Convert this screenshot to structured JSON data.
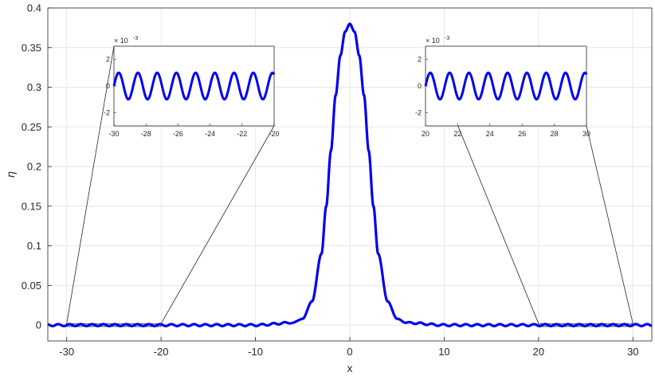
{
  "chart_data": {
    "type": "line",
    "title": "",
    "xlabel": "x",
    "ylabel": "η",
    "xlim": [
      -32,
      32
    ],
    "ylim": [
      -0.02,
      0.4
    ],
    "grid": true,
    "line_color": "#0000ee",
    "x_ticks": [
      -30,
      -20,
      -10,
      0,
      10,
      20,
      30
    ],
    "x_tick_labels": [
      "-30",
      "-20",
      "-10",
      "0",
      "10",
      "20",
      "30"
    ],
    "y_ticks": [
      0,
      0.05,
      0.1,
      0.15,
      0.2,
      0.25,
      0.3,
      0.35,
      0.4
    ],
    "y_tick_labels": [
      "0",
      "0.05",
      "0.1",
      "0.15",
      "0.2",
      "0.25",
      "0.3",
      "0.35",
      "0.4"
    ],
    "series": [
      {
        "x": [
          -32,
          -30,
          -25,
          -20,
          -15,
          -10,
          -6,
          -5,
          -4,
          -3,
          -2.5,
          -2,
          -1.5,
          -1,
          -0.5,
          0,
          0.5,
          1,
          1.5,
          2,
          2.5,
          3,
          4,
          5,
          6,
          10,
          15,
          20,
          25,
          30,
          32
        ],
        "y": [
          0,
          0,
          0,
          0,
          0,
          0,
          0.003,
          0.008,
          0.03,
          0.09,
          0.15,
          0.22,
          0.29,
          0.34,
          0.37,
          0.38,
          0.37,
          0.34,
          0.29,
          0.22,
          0.15,
          0.09,
          0.03,
          0.008,
          0.003,
          0,
          0,
          0,
          0,
          0,
          0
        ],
        "ripple_amplitude": 0.0012,
        "ripple_period": 1.2
      }
    ],
    "insets": [
      {
        "xlim": [
          -30,
          -20
        ],
        "ylim": [
          -3,
          3
        ],
        "y_scale_label": "× 10",
        "y_scale_exponent": "-3",
        "x_tick_labels": [
          "-30",
          "-28",
          "-26",
          "-24",
          "-22",
          "-20"
        ],
        "y_tick_labels": [
          "2",
          "0",
          "-2"
        ],
        "amplitude": 1,
        "period": 1.2
      },
      {
        "xlim": [
          20,
          30
        ],
        "ylim": [
          -3,
          3
        ],
        "y_scale_label": "× 10",
        "y_scale_exponent": "-3",
        "x_tick_labels": [
          "20",
          "22",
          "24",
          "26",
          "28",
          "30"
        ],
        "y_tick_labels": [
          "2",
          "0",
          "-2"
        ],
        "amplitude": 1,
        "period": 1.2
      }
    ]
  }
}
